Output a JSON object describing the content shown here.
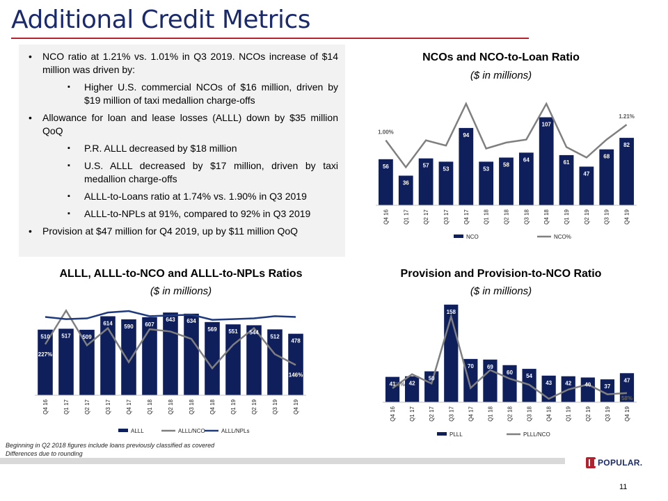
{
  "page": {
    "title": "Additional Credit Metrics",
    "page_number": "11",
    "footnotes": [
      "Beginning in Q2 2018 figures include loans previously classified as covered",
      "Differences due to rounding"
    ],
    "logo_text": "POPULAR."
  },
  "bullets": [
    {
      "level": 1,
      "text": "NCO ratio at 1.21% vs. 1.01% in Q3 2019. NCOs increase of $14 million was driven by:"
    },
    {
      "level": 2,
      "text": "Higher U.S. commercial NCOs of $16 million, driven by $19 million of taxi medallion charge-offs"
    },
    {
      "level": 1,
      "text": "Allowance for loan and lease losses (ALLL) down by $35 million QoQ"
    },
    {
      "level": 2,
      "text": "P.R. ALLL decreased by $18 million"
    },
    {
      "level": 2,
      "text": "U.S. ALLL decreased by $17 million, driven by taxi medallion charge-offs"
    },
    {
      "level": 2,
      "text": "ALLL-to-Loans ratio at 1.74% vs. 1.90% in Q3 2019"
    },
    {
      "level": 2,
      "text": "ALLL-to-NPLs at 91%, compared to 92% in Q3 2019"
    },
    {
      "level": 1,
      "text": "Provision at $47 million for Q4 2019, up by $11 million QoQ"
    }
  ],
  "colors": {
    "navy": "#0f1f5c",
    "gray": "#7f7f7f",
    "title_blue": "#1a2a6c",
    "rule_red": "#b3222e"
  },
  "chart_data": [
    {
      "id": "nco",
      "type": "bar",
      "title": "NCOs and NCO-to-Loan Ratio",
      "subtitle": "($ in millions)",
      "categories": [
        "Q4 16",
        "Q1 17",
        "Q2 17",
        "Q3 17",
        "Q4 17",
        "Q1 18",
        "Q2 18",
        "Q3 18",
        "Q4 18",
        "Q1 19",
        "Q2 19",
        "Q3 19",
        "Q4 19"
      ],
      "series": [
        {
          "name": "NCO",
          "type": "bar",
          "values": [
            56,
            36,
            57,
            53,
            94,
            53,
            58,
            64,
            107,
            61,
            47,
            68,
            82
          ],
          "labels": [
            "56",
            "36",
            "57",
            "53",
            "94",
            "53",
            "58",
            "64",
            "107",
            "61",
            "47",
            "68",
            "82"
          ]
        },
        {
          "name": "NCO%",
          "type": "line",
          "values": [
            1.0,
            0.64,
            1.0,
            0.93,
            1.49,
            0.89,
            0.97,
            1.01,
            1.49,
            0.91,
            0.77,
            1.01,
            1.21
          ],
          "labels": [
            "1.00%",
            "",
            "",
            "",
            "",
            "",
            "",
            "",
            "",
            "",
            "",
            "",
            "1.21%"
          ]
        }
      ],
      "ylim": [
        0,
        110
      ]
    },
    {
      "id": "alll",
      "type": "bar",
      "title": "ALLL, ALLL-to-NCO and ALLL-to-NPLs Ratios",
      "subtitle": "($ in millions)",
      "categories": [
        "Q4 16",
        "Q1 17",
        "Q2 17",
        "Q3 17",
        "Q4 17",
        "Q1 18",
        "Q2 18",
        "Q3 18",
        "Q4 18",
        "Q1 19",
        "Q2 19",
        "Q3 19",
        "Q4 19"
      ],
      "series": [
        {
          "name": "ALLL",
          "type": "bar",
          "values": [
            510,
            517,
            509,
            614,
            590,
            607,
            643,
            634,
            569,
            551,
            544,
            512,
            478
          ],
          "labels": [
            "510",
            "517",
            "509",
            "614",
            "590",
            "607",
            "643",
            "634",
            "569",
            "551",
            "544",
            "512",
            "478"
          ]
        },
        {
          "name": "ALLL/NCO",
          "type": "line",
          "values": [
            227,
            359,
            223,
            290,
            157,
            286,
            277,
            248,
            133,
            225,
            290,
            188,
            146
          ],
          "labels": [
            "227%",
            "",
            "",
            "",
            "",
            "",
            "",
            "",
            "",
            "",
            "",
            "",
            "146%"
          ]
        },
        {
          "name": "ALLL/NPLs",
          "type": "line",
          "values": [
            91,
            88,
            89,
            97,
            99,
            92,
            93,
            94,
            87,
            88,
            89,
            92,
            91
          ],
          "labels": [
            "91%",
            "",
            "",
            "",
            "",
            "",
            "",
            "",
            "",
            "",
            "",
            "",
            "91%"
          ]
        }
      ],
      "ylim": [
        0,
        660
      ]
    },
    {
      "id": "provision",
      "type": "bar",
      "title": "Provision and Provision-to-NCO Ratio",
      "subtitle": "($ in millions)",
      "categories": [
        "Q4 16",
        "Q1 17",
        "Q2 17",
        "Q3 17",
        "Q4 17",
        "Q1 18",
        "Q2 18",
        "Q3 18",
        "Q4 18",
        "Q1 19",
        "Q2 19",
        "Q3 19",
        "Q4 19"
      ],
      "series": [
        {
          "name": "PLLL",
          "type": "bar",
          "values": [
            41,
            42,
            50,
            158,
            70,
            69,
            60,
            54,
            43,
            42,
            40,
            37,
            47
          ],
          "labels": [
            "41",
            "42",
            "50",
            "158",
            "70",
            "69",
            "60",
            "54",
            "43",
            "42",
            "40",
            "37",
            "47"
          ]
        },
        {
          "name": "PLLL/NCO",
          "type": "line",
          "values": [
            73,
            117,
            88,
            298,
            74,
            130,
            103,
            84,
            40,
            69,
            85,
            54,
            58
          ],
          "labels": [
            "73%",
            "",
            "",
            "",
            "",
            "",
            "",
            "",
            "",
            "",
            "",
            "",
            "58%"
          ]
        }
      ],
      "ylim": [
        0,
        160
      ]
    }
  ]
}
